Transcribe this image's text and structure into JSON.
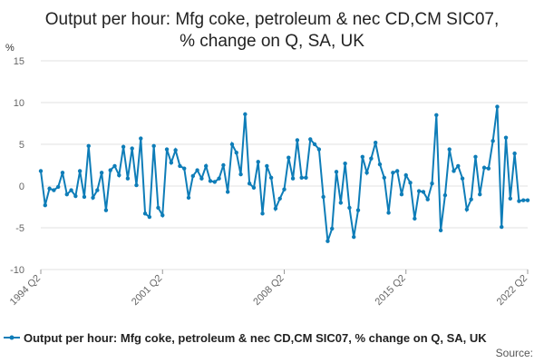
{
  "chart_data": {
    "type": "line",
    "title": "Output per hour: Mfg coke, petroleum & nec CD,CM SIC07, % change on Q, SA, UK",
    "title_lines": [
      "Output per hour: Mfg coke, petroleum & nec CD,CM SIC07,",
      "% change on Q, SA, UK"
    ],
    "ylabel": "%",
    "ylim": [
      -10,
      15
    ],
    "yticks": [
      "15",
      "10",
      "5",
      "0",
      "-5",
      "-10"
    ],
    "xticks": [
      "1994 Q2",
      "2001 Q2",
      "2008 Q2",
      "2015 Q2",
      "2022 Q2"
    ],
    "x_start": "1994 Q2",
    "x_end": "2022 Q2",
    "grid": true,
    "legend_position": "bottom",
    "series": [
      {
        "name": "Output per hour: Mfg coke, petroleum & nec CD,CM SIC07, % change on Q, SA, UK",
        "color": "#0e7db8",
        "values": [
          1.8,
          -2.3,
          -0.3,
          -0.5,
          -0.1,
          1.6,
          -1.0,
          -0.5,
          -1.2,
          1.8,
          -1.3,
          4.8,
          -1.4,
          -0.5,
          1.6,
          -2.9,
          1.9,
          2.4,
          1.3,
          4.7,
          0.9,
          4.5,
          0.1,
          5.7,
          -3.3,
          -3.7,
          4.8,
          -2.6,
          -3.5,
          4.4,
          2.8,
          4.3,
          2.4,
          2.1,
          -1.4,
          1.2,
          1.9,
          0.9,
          2.4,
          0.6,
          0.5,
          0.9,
          2.5,
          -0.7,
          5.0,
          4.0,
          1.4,
          8.6,
          0.3,
          -0.2,
          2.9,
          -3.3,
          2.4,
          1.0,
          -2.7,
          -1.5,
          -0.4,
          3.4,
          0.9,
          5.5,
          1.0,
          1.0,
          5.6,
          5.0,
          4.4,
          -1.3,
          -6.6,
          -5.1,
          1.7,
          -2.0,
          2.7,
          -2.6,
          -6.1,
          -2.9,
          3.5,
          1.6,
          3.3,
          5.2,
          2.6,
          1.0,
          -3.2,
          1.6,
          1.8,
          -1.0,
          1.3,
          0.4,
          -3.9,
          -0.6,
          -0.7,
          -1.6,
          0.3,
          8.5,
          -5.3,
          -1.1,
          4.4,
          1.8,
          2.4,
          0.9,
          -2.8,
          -1.6,
          3.5,
          -1.0,
          2.2,
          2.1,
          5.4,
          9.5,
          -4.9,
          5.8,
          -1.5,
          3.9,
          -1.8,
          -1.7,
          -1.7
        ]
      }
    ]
  },
  "legend": {
    "label": "Output per hour: Mfg coke, petroleum & nec CD,CM SIC07, % change on Q, SA, UK"
  },
  "source_label": "Source:"
}
